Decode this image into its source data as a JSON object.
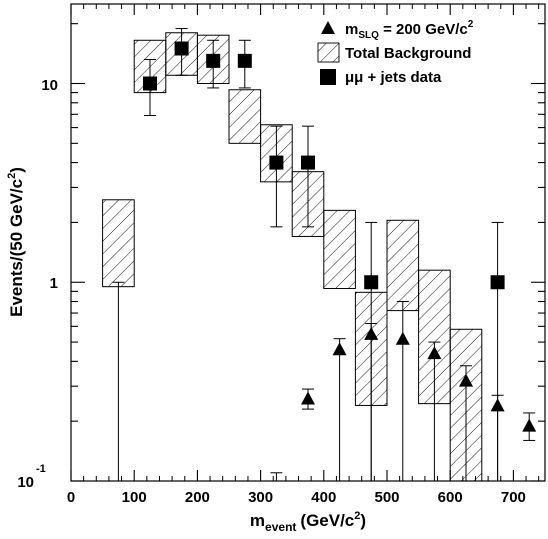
{
  "chart_data": {
    "type": "scatter",
    "title": "",
    "xlabel": "m",
    "xlabel_sub": "event",
    "xlabel_unit": "(GeV/c",
    "xlabel_unit_sup": "2",
    "xlabel_close": ")",
    "ylabel": "Events/(50 GeV/c",
    "ylabel_sup": "2",
    "ylabel_close": ")",
    "xlim": [
      0,
      750
    ],
    "ylim_log10": [
      -1,
      1.4
    ],
    "yscale": "log",
    "x_ticks": [
      "0",
      "100",
      "200",
      "300",
      "400",
      "500",
      "600",
      "700"
    ],
    "y_tick_main": [
      "10",
      "1"
    ],
    "y_tick_low_base": "10",
    "y_tick_low_exp": "-1",
    "legend_position": "top-right",
    "legend": [
      {
        "symbol": "triangle",
        "text": "m",
        "sub": "SLQ",
        "rest": " = 200 GeV/c",
        "sup": "2"
      },
      {
        "symbol": "hatched-box",
        "text": "Total Background"
      },
      {
        "symbol": "square",
        "text": "μμ + jets data"
      }
    ],
    "background_boxes": [
      {
        "x": 75,
        "low": 0.95,
        "high": 2.6
      },
      {
        "x": 125,
        "low": 9.0,
        "high": 16.5
      },
      {
        "x": 175,
        "low": 11.0,
        "high": 18.0
      },
      {
        "x": 225,
        "low": 10.0,
        "high": 17.5
      },
      {
        "x": 275,
        "low": 5.0,
        "high": 9.3
      },
      {
        "x": 325,
        "low": 3.2,
        "high": 6.2
      },
      {
        "x": 375,
        "low": 1.7,
        "high": 3.6
      },
      {
        "x": 425,
        "low": 0.93,
        "high": 2.3
      },
      {
        "x": 475,
        "low": 0.24,
        "high": 0.89
      },
      {
        "x": 525,
        "low": 0.72,
        "high": 2.05
      },
      {
        "x": 575,
        "low": 0.245,
        "high": 1.15
      },
      {
        "x": 625,
        "low": 0.1,
        "high": 0.58
      }
    ],
    "signal_triangles": [
      {
        "x": 375,
        "y": 0.26,
        "low": 0.23,
        "high": 0.29
      },
      {
        "x": 425,
        "y": 0.46,
        "low": 0.1,
        "high": 0.52
      },
      {
        "x": 475,
        "y": 0.55,
        "low": 0.1,
        "high": 0.62
      },
      {
        "x": 525,
        "y": 0.52,
        "low": 0.1,
        "high": 0.8
      },
      {
        "x": 575,
        "y": 0.44,
        "low": 0.1,
        "high": 0.5
      },
      {
        "x": 625,
        "y": 0.32,
        "low": 0.1,
        "high": 0.38
      },
      {
        "x": 675,
        "y": 0.24,
        "low": 0.1,
        "high": 0.27
      },
      {
        "x": 725,
        "y": 0.19,
        "low": 0.16,
        "high": 0.22
      }
    ],
    "data_points": [
      {
        "x": 125,
        "y": 10,
        "low": 6.9,
        "high": 13.2
      },
      {
        "x": 175,
        "y": 15,
        "low": 11.0,
        "high": 18.9
      },
      {
        "x": 225,
        "y": 13,
        "low": 9.5,
        "high": 16.5
      },
      {
        "x": 275,
        "y": 13,
        "low": 9.5,
        "high": 16.5
      },
      {
        "x": 325,
        "y": 4,
        "low": 1.9,
        "high": 6.1
      },
      {
        "x": 375,
        "y": 4,
        "low": 1.9,
        "high": 6.1
      },
      {
        "x": 475,
        "y": 1,
        "low": 0.1,
        "high": 2.0
      },
      {
        "x": 675,
        "y": 1,
        "low": 0.1,
        "high": 2.0
      }
    ],
    "extra_vlines": [
      {
        "x": 75,
        "low": 0.1,
        "high": 1.0
      },
      {
        "x": 325,
        "low": 0.1,
        "high": 0.11
      }
    ]
  }
}
